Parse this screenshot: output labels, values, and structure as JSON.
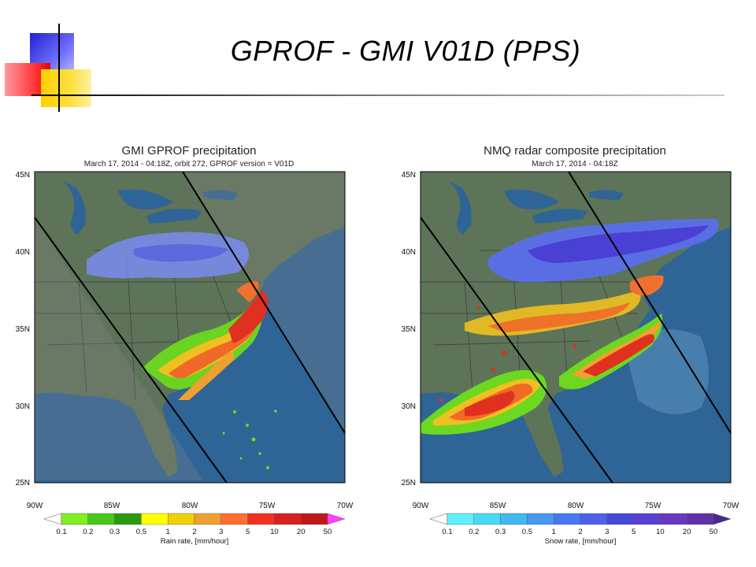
{
  "slide": {
    "title": "GPROF - GMI V01D (PPS)"
  },
  "panels": [
    {
      "id": "left",
      "title": "GMI GPROF precipitation",
      "subtitle": "March 17, 2014 - 04:18Z, orbit 272, GPROF version = V01D",
      "lat_ticks": [
        "45N",
        "40N",
        "35N",
        "30N",
        "25N"
      ],
      "lon_ticks": [
        "90W",
        "85W",
        "80W",
        "75W",
        "70W"
      ],
      "colorbar": {
        "labels": [
          "0.1",
          "0.2",
          "0.3",
          "0.5",
          "1",
          "2",
          "3",
          "5",
          "10",
          "20",
          "50"
        ],
        "colors": [
          "#80f020",
          "#48c818",
          "#2a9a10",
          "#ffff00",
          "#f0d000",
          "#f0a030",
          "#ff7030",
          "#f03020",
          "#d82020",
          "#c01818",
          "#ff40ff"
        ],
        "label": "Rain rate, [mm/hour]"
      }
    },
    {
      "id": "right",
      "title": "NMQ radar composite precipitation",
      "subtitle": "March 17, 2014 - 04:18Z",
      "lat_ticks": [
        "45N",
        "40N",
        "35N",
        "30N",
        "25N"
      ],
      "lon_ticks": [
        "90W",
        "85W",
        "80W",
        "75W",
        "70W"
      ],
      "colorbar": {
        "labels": [
          "0.1",
          "0.2",
          "0.3",
          "0.5",
          "1",
          "2",
          "3",
          "5",
          "10",
          "20",
          "50"
        ],
        "colors": [
          "#60f0ff",
          "#48d8f8",
          "#40b8f0",
          "#4898f0",
          "#4878f0",
          "#5060e8",
          "#4848d8",
          "#5840d0",
          "#6838c0",
          "#6030a8",
          "#482890"
        ],
        "label": "Snow rate, [mm/hour]"
      }
    }
  ]
}
